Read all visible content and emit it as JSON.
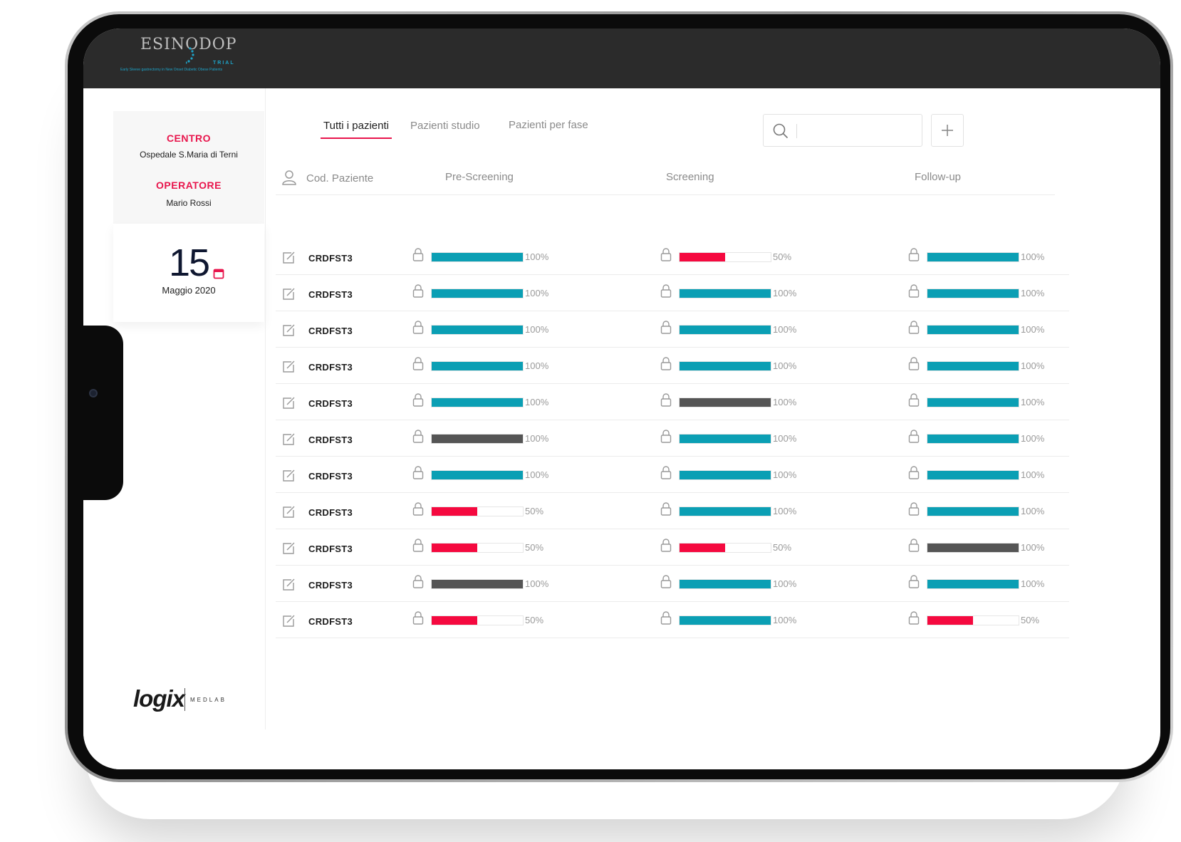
{
  "app": {
    "logo_brand": "ESINODOP",
    "logo_trial": "TRIAL",
    "logo_tagline": "Early Sleeve gastrectomy in New Onset Diabetic Obese Patients"
  },
  "sidebar": {
    "centro_label": "CENTRO",
    "centro_value": "Ospedale S.Maria di Terni",
    "operatore_label": "OPERATORE",
    "operatore_value": "Mario Rossi",
    "date_day": "15",
    "date_month": "Maggio 2020",
    "footer_logo": "logix",
    "footer_logo_sub": "MEDLAB"
  },
  "tabs": [
    {
      "label": "Tutti i pazienti",
      "active": true
    },
    {
      "label": "Pazienti studio",
      "active": false
    },
    {
      "label": "Pazienti per fase",
      "active": false
    }
  ],
  "search": {
    "placeholder": "",
    "icon": "search-icon"
  },
  "add_button": {
    "icon": "plus-icon"
  },
  "colors": {
    "teal": "#0b9fb4",
    "red": "#f5093f",
    "gray": "#555555",
    "accent": "#e8154c"
  },
  "table": {
    "headers": {
      "patient": "Cod. Paziente",
      "pre_screening": "Pre-Screening",
      "screening": "Screening",
      "follow_up": "Follow-up"
    },
    "rows": [
      {
        "code": "CRDFST3",
        "pre": {
          "value": 100,
          "label": "100%",
          "color": "teal"
        },
        "scr": {
          "value": 50,
          "label": "50%",
          "color": "red"
        },
        "fu": {
          "value": 100,
          "label": "100%",
          "color": "teal"
        }
      },
      {
        "code": "CRDFST3",
        "pre": {
          "value": 100,
          "label": "100%",
          "color": "teal"
        },
        "scr": {
          "value": 100,
          "label": "100%",
          "color": "teal"
        },
        "fu": {
          "value": 100,
          "label": "100%",
          "color": "teal"
        }
      },
      {
        "code": "CRDFST3",
        "pre": {
          "value": 100,
          "label": "100%",
          "color": "teal"
        },
        "scr": {
          "value": 100,
          "label": "100%",
          "color": "teal"
        },
        "fu": {
          "value": 100,
          "label": "100%",
          "color": "teal"
        }
      },
      {
        "code": "CRDFST3",
        "pre": {
          "value": 100,
          "label": "100%",
          "color": "teal"
        },
        "scr": {
          "value": 100,
          "label": "100%",
          "color": "teal"
        },
        "fu": {
          "value": 100,
          "label": "100%",
          "color": "teal"
        }
      },
      {
        "code": "CRDFST3",
        "pre": {
          "value": 100,
          "label": "100%",
          "color": "teal"
        },
        "scr": {
          "value": 100,
          "label": "100%",
          "color": "gray"
        },
        "fu": {
          "value": 100,
          "label": "100%",
          "color": "teal"
        }
      },
      {
        "code": "CRDFST3",
        "pre": {
          "value": 100,
          "label": "100%",
          "color": "gray"
        },
        "scr": {
          "value": 100,
          "label": "100%",
          "color": "teal"
        },
        "fu": {
          "value": 100,
          "label": "100%",
          "color": "teal"
        }
      },
      {
        "code": "CRDFST3",
        "pre": {
          "value": 100,
          "label": "100%",
          "color": "teal"
        },
        "scr": {
          "value": 100,
          "label": "100%",
          "color": "teal"
        },
        "fu": {
          "value": 100,
          "label": "100%",
          "color": "teal"
        }
      },
      {
        "code": "CRDFST3",
        "pre": {
          "value": 50,
          "label": "50%",
          "color": "red"
        },
        "scr": {
          "value": 100,
          "label": "100%",
          "color": "teal"
        },
        "fu": {
          "value": 100,
          "label": "100%",
          "color": "teal"
        }
      },
      {
        "code": "CRDFST3",
        "pre": {
          "value": 50,
          "label": "50%",
          "color": "red"
        },
        "scr": {
          "value": 50,
          "label": "50%",
          "color": "red"
        },
        "fu": {
          "value": 100,
          "label": "100%",
          "color": "gray"
        }
      },
      {
        "code": "CRDFST3",
        "pre": {
          "value": 100,
          "label": "100%",
          "color": "gray"
        },
        "scr": {
          "value": 100,
          "label": "100%",
          "color": "teal"
        },
        "fu": {
          "value": 100,
          "label": "100%",
          "color": "teal"
        }
      },
      {
        "code": "CRDFST3",
        "pre": {
          "value": 50,
          "label": "50%",
          "color": "red"
        },
        "scr": {
          "value": 100,
          "label": "100%",
          "color": "teal"
        },
        "fu": {
          "value": 50,
          "label": "50%",
          "color": "red"
        }
      }
    ]
  }
}
